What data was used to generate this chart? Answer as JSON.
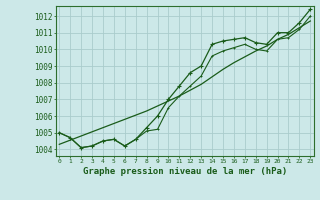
{
  "bg_color": "#cce8e8",
  "grid_color": "#aacccc",
  "line_color": "#1a5c1a",
  "marker_color": "#1a5c1a",
  "x_values": [
    0,
    1,
    2,
    3,
    4,
    5,
    6,
    7,
    8,
    9,
    10,
    11,
    12,
    13,
    14,
    15,
    16,
    17,
    18,
    19,
    20,
    21,
    22,
    23
  ],
  "y_main": [
    1005.0,
    1004.7,
    1004.1,
    1004.2,
    1004.5,
    1004.6,
    1004.2,
    1004.6,
    1005.3,
    1006.0,
    1007.0,
    1007.8,
    1008.6,
    1009.0,
    1010.3,
    1010.5,
    1010.6,
    1010.7,
    1010.4,
    1010.3,
    1011.0,
    1011.0,
    1011.6,
    1012.4
  ],
  "y_low": [
    1005.0,
    1004.7,
    1004.1,
    1004.2,
    1004.5,
    1004.6,
    1004.2,
    1004.6,
    1005.1,
    1005.2,
    1006.5,
    1007.2,
    1007.8,
    1008.4,
    1009.6,
    1009.9,
    1010.1,
    1010.3,
    1010.0,
    1009.9,
    1010.6,
    1010.7,
    1011.2,
    1012.0
  ],
  "y_trend": [
    1004.3,
    1004.55,
    1004.8,
    1005.05,
    1005.3,
    1005.55,
    1005.8,
    1006.05,
    1006.3,
    1006.6,
    1006.9,
    1007.2,
    1007.55,
    1007.9,
    1008.35,
    1008.8,
    1009.2,
    1009.55,
    1009.9,
    1010.2,
    1010.6,
    1010.9,
    1011.3,
    1011.7
  ],
  "ylim": [
    1003.6,
    1012.6
  ],
  "yticks": [
    1004,
    1005,
    1006,
    1007,
    1008,
    1009,
    1010,
    1011,
    1012
  ],
  "xlabel": "Graphe pression niveau de la mer (hPa)",
  "axis_color": "#2d6e2d",
  "tick_color": "#1a5c1a",
  "label_color": "#1a5c1a",
  "ylabel_fontsize": 6.0,
  "xlabel_fontsize": 6.5,
  "ytick_fontsize": 5.5,
  "xtick_fontsize": 4.5
}
